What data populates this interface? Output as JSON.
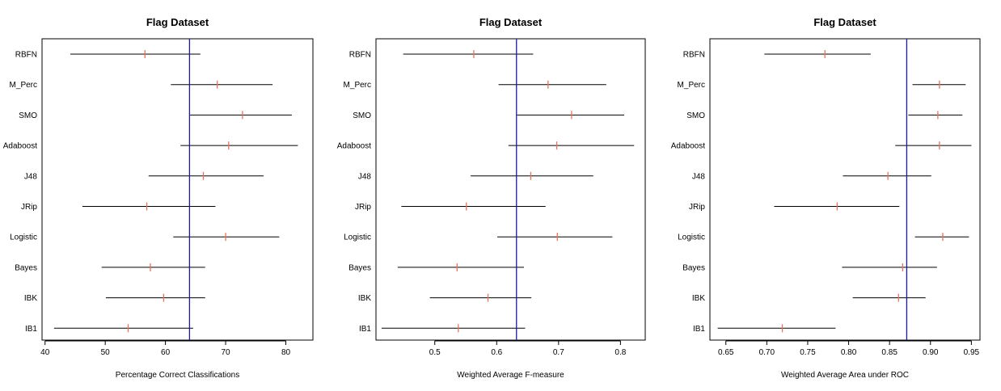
{
  "chart_data": [
    {
      "type": "interval",
      "title": "Flag Dataset",
      "xlabel": "Percentage Correct Classifications",
      "categories": [
        "RBFN",
        "M_Perc",
        "SMO",
        "Adaboost",
        "J48",
        "JRip",
        "Logistic",
        "Bayes",
        "IBK",
        "IB1"
      ],
      "mean": [
        56.6,
        68.6,
        72.8,
        70.5,
        66.3,
        56.9,
        70.0,
        57.5,
        59.7,
        53.8
      ],
      "lower": [
        44.2,
        60.9,
        64.1,
        62.5,
        57.2,
        46.2,
        61.3,
        49.4,
        50.1,
        41.5
      ],
      "upper": [
        65.8,
        77.8,
        81.0,
        82.0,
        76.3,
        68.3,
        78.9,
        66.6,
        66.6,
        64.6
      ],
      "reference_line": 64.0,
      "xlim": [
        39.5,
        84.5
      ],
      "xticks": [
        40,
        50,
        60,
        70,
        80
      ],
      "xtick_labels": [
        "40",
        "50",
        "60",
        "70",
        "80"
      ]
    },
    {
      "type": "interval",
      "title": "Flag Dataset",
      "xlabel": "Weighted Average F-measure",
      "categories": [
        "RBFN",
        "M_Perc",
        "SMO",
        "Adaboost",
        "J48",
        "JRip",
        "Logistic",
        "Bayes",
        "IBK",
        "IB1"
      ],
      "mean": [
        0.563,
        0.683,
        0.721,
        0.697,
        0.655,
        0.551,
        0.698,
        0.536,
        0.586,
        0.538
      ],
      "lower": [
        0.449,
        0.603,
        0.633,
        0.619,
        0.558,
        0.446,
        0.601,
        0.44,
        0.492,
        0.414
      ],
      "upper": [
        0.659,
        0.777,
        0.806,
        0.822,
        0.756,
        0.679,
        0.787,
        0.644,
        0.656,
        0.646
      ],
      "reference_line": 0.632,
      "xlim": [
        0.405,
        0.84
      ],
      "xticks": [
        0.5,
        0.6,
        0.7,
        0.8
      ],
      "xtick_labels": [
        "0.5",
        "0.6",
        "0.7",
        "0.8"
      ]
    },
    {
      "type": "interval",
      "title": "Flag Dataset",
      "xlabel": "Weighted Average Area under ROC",
      "categories": [
        "RBFN",
        "M_Perc",
        "SMO",
        "Adaboost",
        "J48",
        "JRip",
        "Logistic",
        "Bayes",
        "IBK",
        "IB1"
      ],
      "mean": [
        0.771,
        0.911,
        0.909,
        0.911,
        0.848,
        0.786,
        0.915,
        0.866,
        0.861,
        0.719
      ],
      "lower": [
        0.697,
        0.878,
        0.873,
        0.857,
        0.793,
        0.709,
        0.881,
        0.792,
        0.805,
        0.64
      ],
      "upper": [
        0.827,
        0.943,
        0.939,
        0.95,
        0.901,
        0.862,
        0.947,
        0.908,
        0.894,
        0.784
      ],
      "reference_line": 0.871,
      "xlim": [
        0.6305,
        0.9605
      ],
      "xticks": [
        0.65,
        0.7,
        0.75,
        0.8,
        0.85,
        0.9,
        0.95
      ],
      "xtick_labels": [
        "0.65",
        "0.70",
        "0.75",
        "0.80",
        "0.85",
        "0.90",
        "0.95"
      ]
    }
  ],
  "colors": {
    "interval": "#000000",
    "mean_marker": "#e8735a",
    "reference_line": "#1a1aa6",
    "frame": "#000000"
  }
}
